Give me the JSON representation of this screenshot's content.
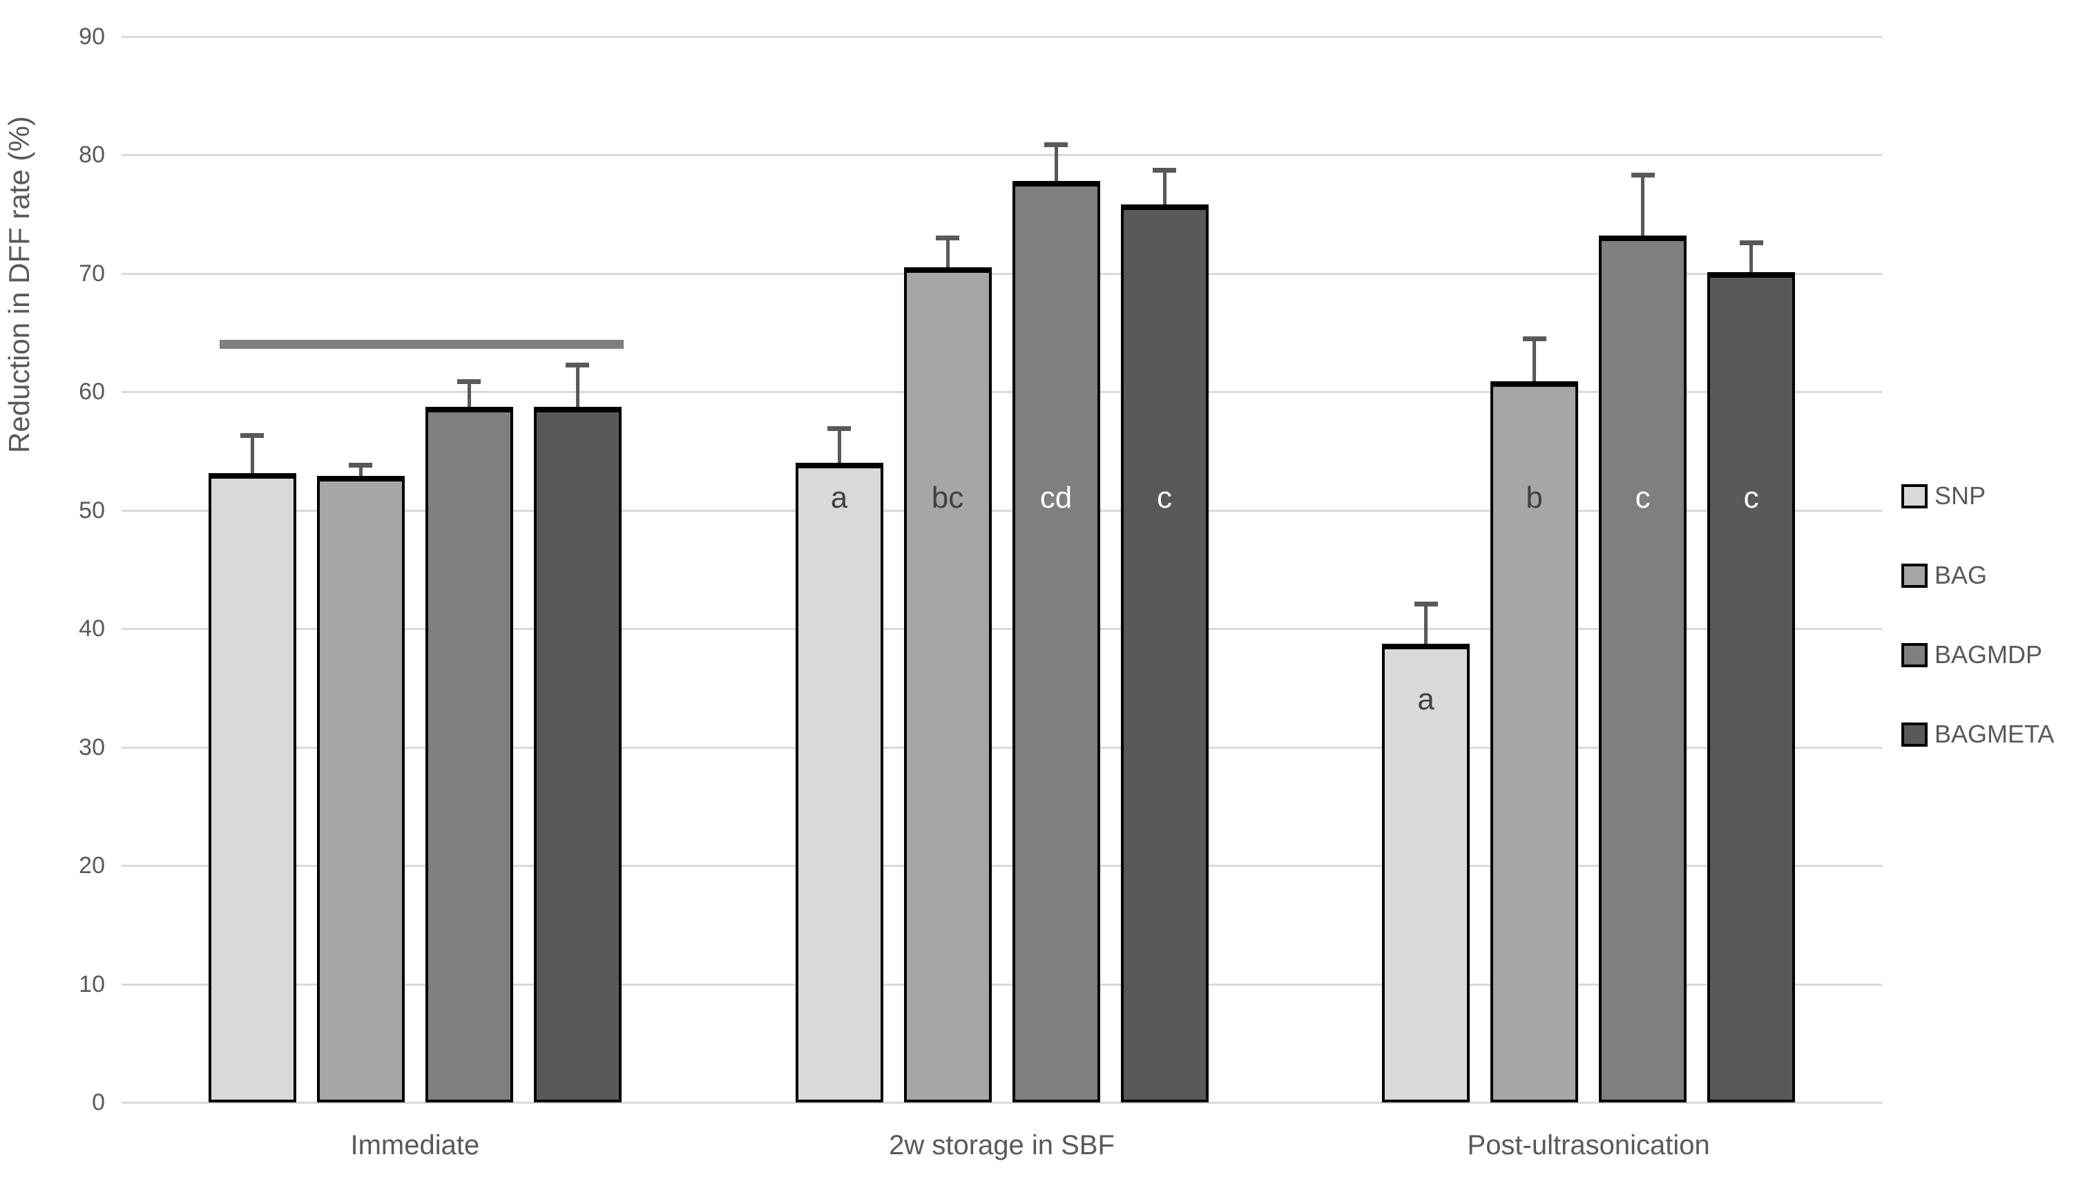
{
  "chart_data": {
    "type": "bar",
    "title": "",
    "xlabel": "",
    "ylabel": "Reduction in DFF rate (%)",
    "ylim": [
      0,
      90
    ],
    "y_ticks": [
      0,
      10,
      20,
      30,
      40,
      50,
      60,
      70,
      80,
      90
    ],
    "grid": true,
    "legend_position": "right",
    "categories": [
      "Immediate",
      "2w storage in SBF",
      "Post-ultrasonication"
    ],
    "series": [
      {
        "name": "SNP",
        "color": "#d9d9d9",
        "values": [
          53.1,
          54.0,
          38.7
        ],
        "errors": [
          3.2,
          2.9,
          3.4
        ],
        "letters": [
          "",
          "a",
          "a"
        ],
        "letter_y": [
          null,
          51,
          34
        ],
        "letter_color": "#404040"
      },
      {
        "name": "BAG",
        "color": "#a6a6a6",
        "values": [
          52.9,
          70.5,
          60.9
        ],
        "errors": [
          0.9,
          2.5,
          3.6
        ],
        "letters": [
          "",
          "bc",
          "b"
        ],
        "letter_y": [
          null,
          51,
          51
        ],
        "letter_color": "#404040"
      },
      {
        "name": "BAGMDP",
        "color": "#7f7f7f",
        "values": [
          58.7,
          77.8,
          73.2
        ],
        "errors": [
          2.2,
          3.1,
          5.1
        ],
        "letters": [
          "",
          "cd",
          "c"
        ],
        "letter_y": [
          null,
          51,
          51
        ],
        "letter_color": "#ffffff"
      },
      {
        "name": "BAGMETA",
        "color": "#595959",
        "values": [
          58.7,
          75.8,
          70.1
        ],
        "errors": [
          3.6,
          2.9,
          2.5
        ],
        "letters": [
          "",
          "c",
          "c"
        ],
        "letter_y": [
          null,
          51,
          51
        ],
        "letter_color": "#ffffff"
      }
    ],
    "annotations": [
      {
        "type": "significance-line",
        "category_index": 0,
        "y": 64,
        "color": "#7f7f7f"
      }
    ],
    "colors": {
      "grid": "#d9d9d9",
      "axis_text": "#595959",
      "error_bar": "#595959",
      "bar_border": "#000000"
    }
  }
}
